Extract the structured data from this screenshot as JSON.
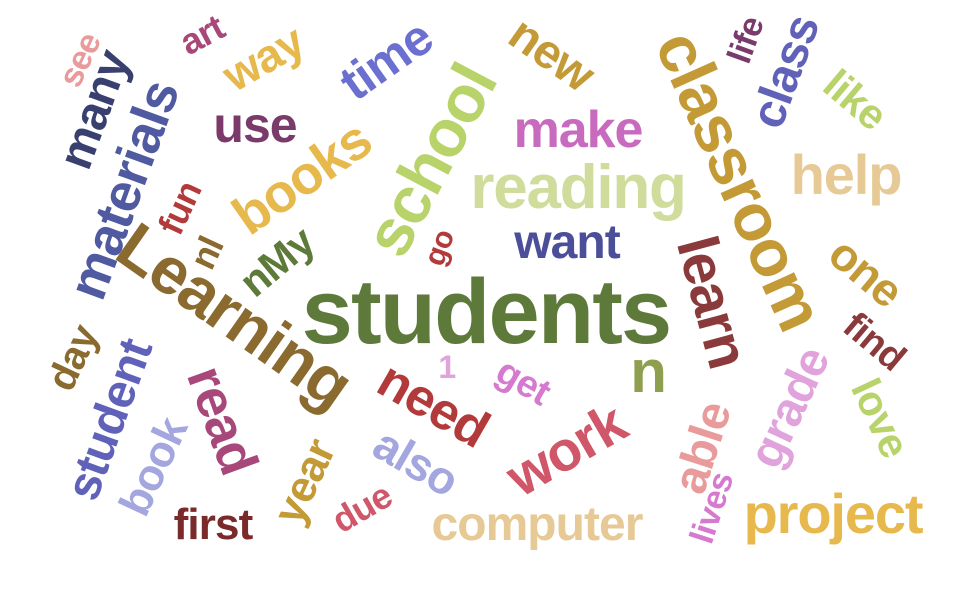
{
  "words": [
    {
      "text": "students",
      "color": "#5e7a3a"
    },
    {
      "text": "Learning",
      "color": "#8a6a2e"
    },
    {
      "text": "classroom",
      "color": "#c39a35"
    },
    {
      "text": "school",
      "color": "#b9d36b"
    },
    {
      "text": "reading",
      "color": "#cfdc9b"
    },
    {
      "text": "materials",
      "color": "#4f5aa0"
    },
    {
      "text": "books",
      "color": "#e7b94d"
    },
    {
      "text": "learn",
      "color": "#8a3a3a"
    },
    {
      "text": "help",
      "color": "#e6c995"
    },
    {
      "text": "make",
      "color": "#c86bbf"
    },
    {
      "text": "want",
      "color": "#4b4f9a"
    },
    {
      "text": "new",
      "color": "#c39a35"
    },
    {
      "text": "time",
      "color": "#6b6fd0"
    },
    {
      "text": "many",
      "color": "#393f6e"
    },
    {
      "text": "use",
      "color": "#7a3a6a"
    },
    {
      "text": "way",
      "color": "#e7b94d"
    },
    {
      "text": "class",
      "color": "#5f62b8"
    },
    {
      "text": "like",
      "color": "#b9d36b"
    },
    {
      "text": "life",
      "color": "#7a3a6a"
    },
    {
      "text": "art",
      "color": "#a8477a"
    },
    {
      "text": "see",
      "color": "#e99a9a"
    },
    {
      "text": "fun",
      "color": "#b23a3a"
    },
    {
      "text": "nl",
      "color": "#8a6a2e"
    },
    {
      "text": "nMy",
      "color": "#5e7a3a"
    },
    {
      "text": "go",
      "color": "#b23a3a"
    },
    {
      "text": "n",
      "color": "#8ea04f"
    },
    {
      "text": "one",
      "color": "#c39a35"
    },
    {
      "text": "find",
      "color": "#8a3a3a"
    },
    {
      "text": "love",
      "color": "#b9d36b"
    },
    {
      "text": "grade",
      "color": "#e0a3dc"
    },
    {
      "text": "able",
      "color": "#e99a9a"
    },
    {
      "text": "project",
      "color": "#e7b94d"
    },
    {
      "text": "lives",
      "color": "#d67ad0"
    },
    {
      "text": "computer",
      "color": "#e6c995"
    },
    {
      "text": "work",
      "color": "#d0566a"
    },
    {
      "text": "get",
      "color": "#d67ad0"
    },
    {
      "text": "1",
      "color": "#e0a3dc"
    },
    {
      "text": "need",
      "color": "#b23a3a"
    },
    {
      "text": "also",
      "color": "#a3a6df"
    },
    {
      "text": "due",
      "color": "#d0566a"
    },
    {
      "text": "first",
      "color": "#7a2a2a"
    },
    {
      "text": "year",
      "color": "#c39a35"
    },
    {
      "text": "read",
      "color": "#a8477a"
    },
    {
      "text": "book",
      "color": "#a3a6df"
    },
    {
      "text": "student",
      "color": "#5f62b8"
    },
    {
      "text": "day",
      "color": "#8a6a2e"
    }
  ]
}
